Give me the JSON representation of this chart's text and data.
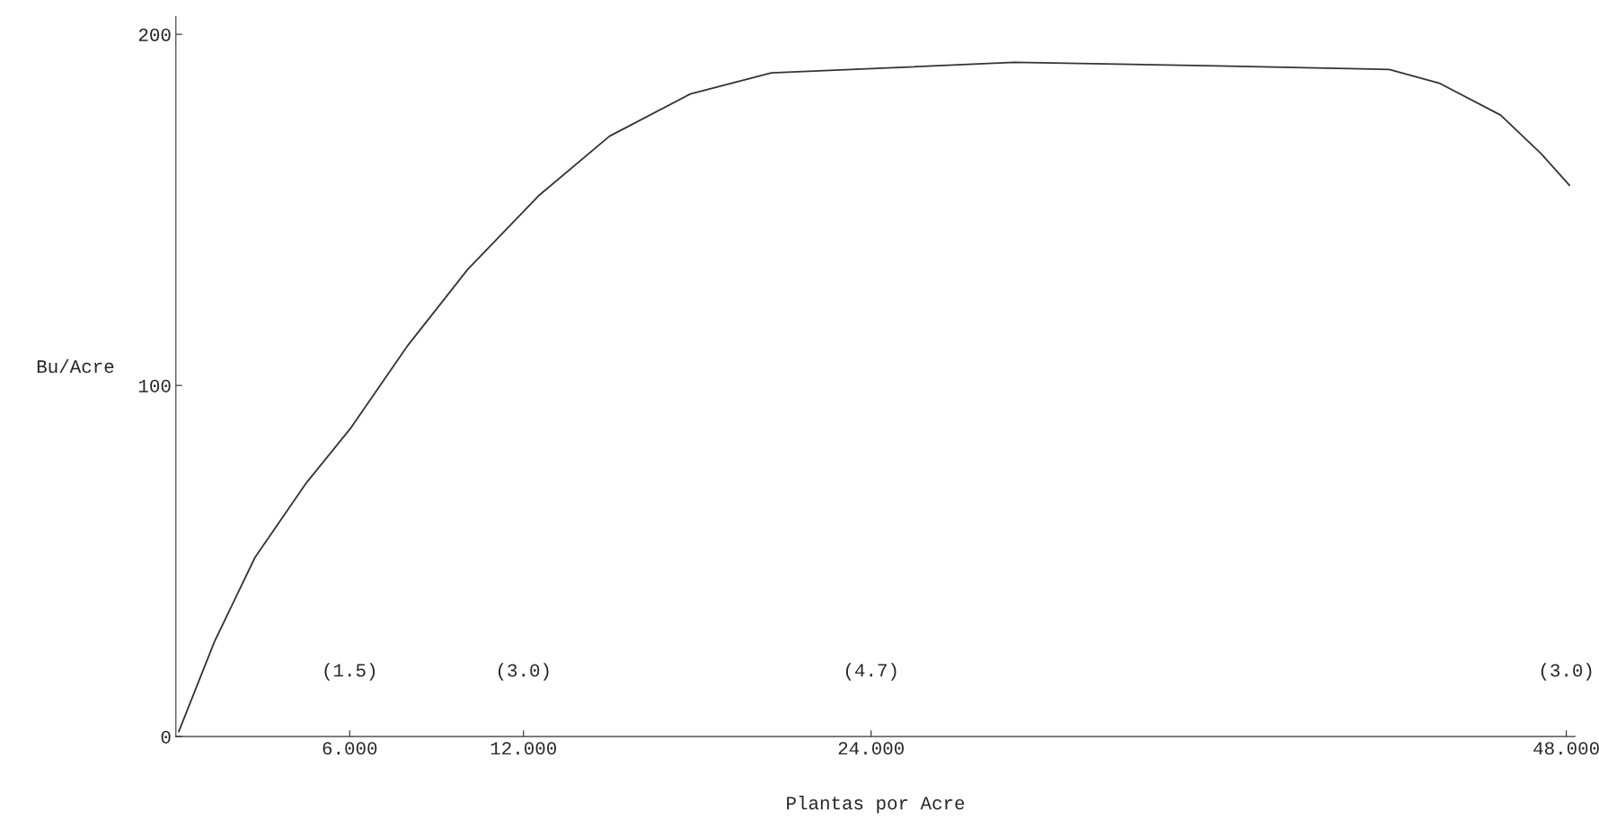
{
  "chart_data": {
    "type": "line",
    "xlabel": "Plantas por Acre",
    "ylabel": "Bu/Acre",
    "x": [
      0.1,
      1.33,
      2.73,
      4.48,
      6.05,
      7.97,
      10.07,
      12.52,
      14.97,
      17.76,
      20.56,
      24.76,
      28.95,
      35.94,
      41.89,
      43.64,
      45.73,
      47.13,
      48.11
    ],
    "series": [
      {
        "color": "#333333",
        "values": [
          1.4,
          27,
          51,
          72,
          88,
          111,
          133,
          154,
          171,
          183,
          189,
          190.5,
          192,
          191,
          190,
          186,
          177,
          166,
          157
        ]
      }
    ],
    "xlim": [
      0,
      48.3
    ],
    "ylim": [
      0,
      205
    ],
    "xticks": [
      {
        "value": 6,
        "label": "6.000"
      },
      {
        "value": 12,
        "label": "12.000"
      },
      {
        "value": 24,
        "label": "24.000"
      },
      {
        "value": 48,
        "label": "48.000"
      }
    ],
    "yticks": [
      0,
      100,
      200
    ],
    "annotations": [
      "(1.5)",
      "(3.0)",
      "(4.7)",
      "(3.0)"
    ],
    "grid": false,
    "legend": false,
    "marker": "none",
    "line_style": "solid"
  }
}
